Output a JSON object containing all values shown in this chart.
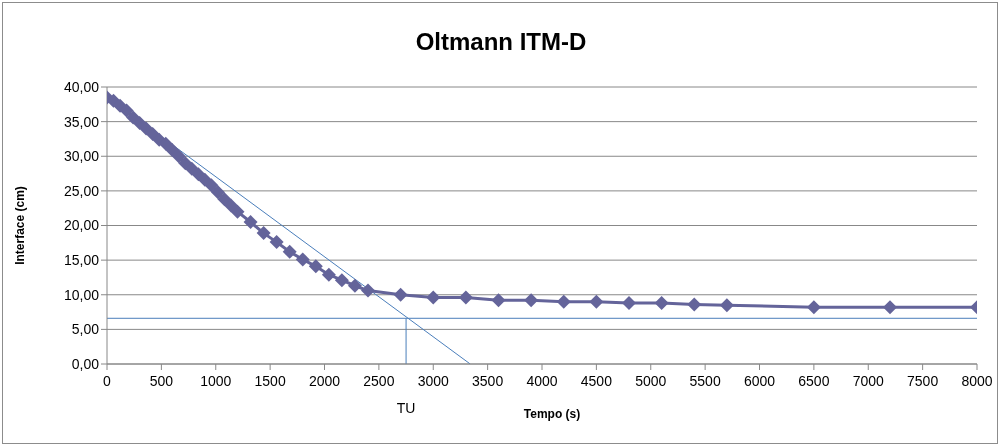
{
  "chart_data": {
    "type": "line",
    "title": "Oltmann ITM-D",
    "xlabel": "Tempo (s)",
    "ylabel": "Interface (cm)",
    "series": [
      {
        "color": "#64649a",
        "marker": "diamond",
        "x": [
          0,
          60,
          120,
          180,
          240,
          300,
          360,
          420,
          480,
          540,
          600,
          660,
          720,
          780,
          840,
          900,
          960,
          1020,
          1080,
          1140,
          1200,
          1320,
          1440,
          1560,
          1680,
          1800,
          1920,
          2040,
          2160,
          2280,
          2400,
          2700,
          3000,
          3300,
          3600,
          3900,
          4200,
          4500,
          4800,
          5100,
          5400,
          5700,
          6500,
          7200,
          8000
        ],
        "values": [
          38.5,
          38.0,
          37.3,
          36.6,
          35.6,
          34.8,
          34.0,
          33.2,
          32.4,
          31.8,
          30.9,
          30.0,
          29.0,
          28.2,
          27.4,
          26.6,
          25.8,
          24.8,
          23.8,
          22.9,
          22.0,
          20.5,
          18.9,
          17.6,
          16.2,
          15.1,
          14.1,
          12.9,
          12.1,
          11.3,
          10.6,
          10.0,
          9.6,
          9.6,
          9.2,
          9.2,
          9.0,
          9.0,
          8.8,
          8.8,
          8.6,
          8.5,
          8.2,
          8.2,
          8.2
        ]
      },
      {
        "type": "line",
        "color": "#4a7ebb",
        "marker": "none",
        "x": [
          0,
          3340
        ],
        "values": [
          38.6,
          0
        ]
      },
      {
        "type": "line",
        "color": "#4a7ebb",
        "marker": "none",
        "x": [
          2750,
          2750
        ],
        "values": [
          0,
          6.6
        ]
      }
    ],
    "ref_lines": [
      {
        "axis": "y",
        "value": 6.6,
        "color": "#4a7ebb"
      }
    ],
    "annotations": [
      {
        "text": "TU",
        "x": 2750,
        "y": 0
      }
    ],
    "xlim": [
      0,
      8000
    ],
    "xticks": [
      0,
      500,
      1000,
      1500,
      2000,
      2500,
      3000,
      3500,
      4000,
      4500,
      5000,
      5500,
      6000,
      6500,
      7000,
      7500,
      8000
    ],
    "ylim": [
      0,
      40
    ],
    "yticks": [
      {
        "value": 0,
        "label": "0,00"
      },
      {
        "value": 5,
        "label": "5,00"
      },
      {
        "value": 10,
        "label": "10,00"
      },
      {
        "value": 15,
        "label": "15,00"
      },
      {
        "value": 20,
        "label": "20,00"
      },
      {
        "value": 25,
        "label": "25,00"
      },
      {
        "value": 30,
        "label": "30,00"
      },
      {
        "value": 35,
        "label": "35,00"
      },
      {
        "value": 40,
        "label": "40,00"
      }
    ],
    "grid": "y"
  }
}
